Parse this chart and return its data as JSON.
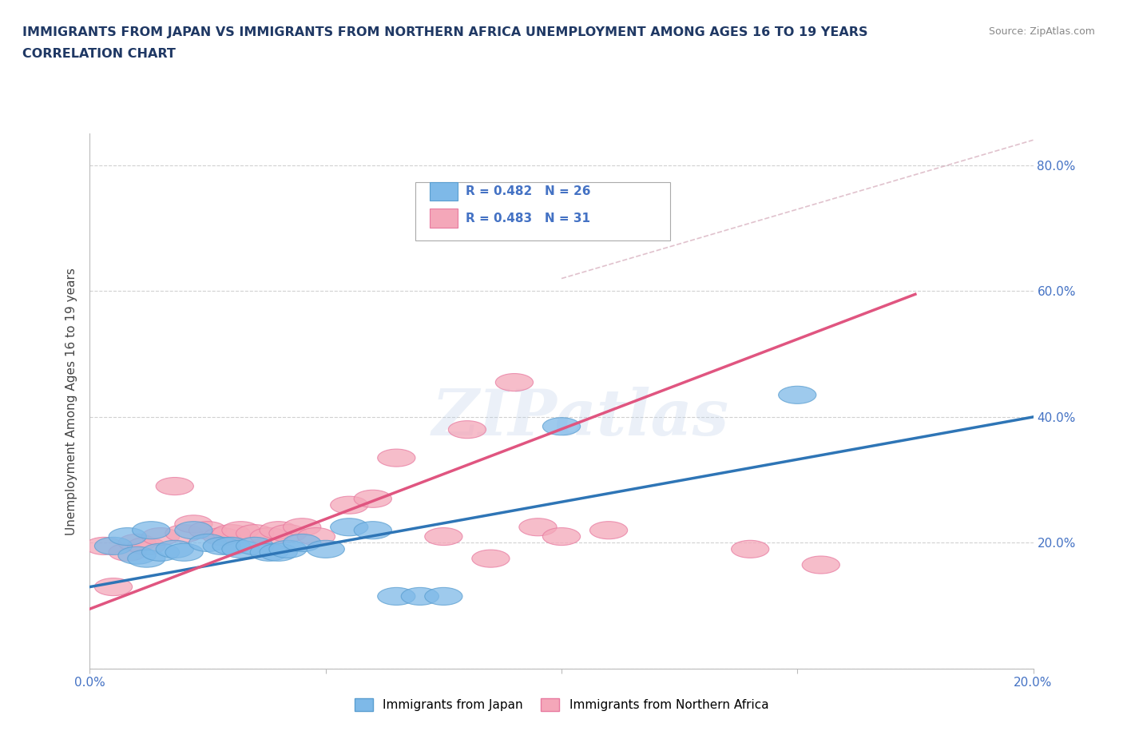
{
  "title_line1": "IMMIGRANTS FROM JAPAN VS IMMIGRANTS FROM NORTHERN AFRICA UNEMPLOYMENT AMONG AGES 16 TO 19 YEARS",
  "title_line2": "CORRELATION CHART",
  "source_text": "Source: ZipAtlas.com",
  "ylabel": "Unemployment Among Ages 16 to 19 years",
  "xlim": [
    0.0,
    0.2
  ],
  "ylim": [
    0.0,
    0.85
  ],
  "xticks": [
    0.0,
    0.05,
    0.1,
    0.15,
    0.2
  ],
  "xtick_labels": [
    "0.0%",
    "",
    "",
    "",
    "20.0%"
  ],
  "yticks_right": [
    0.2,
    0.4,
    0.6,
    0.8
  ],
  "ytick_labels_right": [
    "20.0%",
    "40.0%",
    "60.0%",
    "80.0%"
  ],
  "japan_color": "#7EB9E8",
  "africa_color": "#F4A7B9",
  "japan_edge_color": "#5A9ED0",
  "africa_edge_color": "#E87AA0",
  "japan_R": 0.482,
  "japan_N": 26,
  "africa_R": 0.483,
  "africa_N": 31,
  "watermark": "ZIPatlas",
  "japan_scatter_x": [
    0.005,
    0.008,
    0.01,
    0.012,
    0.013,
    0.015,
    0.018,
    0.02,
    0.022,
    0.025,
    0.028,
    0.03,
    0.032,
    0.035,
    0.038,
    0.04,
    0.042,
    0.045,
    0.05,
    0.055,
    0.06,
    0.065,
    0.07,
    0.075,
    0.1,
    0.15
  ],
  "japan_scatter_y": [
    0.195,
    0.21,
    0.18,
    0.175,
    0.22,
    0.185,
    0.19,
    0.185,
    0.22,
    0.2,
    0.195,
    0.195,
    0.19,
    0.195,
    0.185,
    0.185,
    0.19,
    0.2,
    0.19,
    0.225,
    0.22,
    0.115,
    0.115,
    0.115,
    0.385,
    0.435
  ],
  "africa_scatter_x": [
    0.003,
    0.005,
    0.008,
    0.01,
    0.012,
    0.015,
    0.018,
    0.02,
    0.022,
    0.025,
    0.028,
    0.03,
    0.032,
    0.035,
    0.038,
    0.04,
    0.042,
    0.045,
    0.048,
    0.055,
    0.06,
    0.065,
    0.075,
    0.08,
    0.085,
    0.09,
    0.095,
    0.1,
    0.11,
    0.14,
    0.155
  ],
  "africa_scatter_y": [
    0.195,
    0.13,
    0.185,
    0.2,
    0.195,
    0.21,
    0.29,
    0.215,
    0.23,
    0.22,
    0.21,
    0.215,
    0.22,
    0.215,
    0.21,
    0.22,
    0.215,
    0.225,
    0.21,
    0.26,
    0.27,
    0.335,
    0.21,
    0.38,
    0.175,
    0.455,
    0.225,
    0.21,
    0.22,
    0.19,
    0.165
  ],
  "japan_line_x": [
    0.0,
    0.2
  ],
  "japan_line_y": [
    0.13,
    0.4
  ],
  "africa_line_x": [
    0.0,
    0.175
  ],
  "africa_line_y": [
    0.095,
    0.595
  ],
  "diagonal_line_x": [
    0.1,
    0.2
  ],
  "diagonal_line_y": [
    0.62,
    0.84
  ],
  "axis_color": "#4472C4",
  "grid_color": "#CCCCCC",
  "title_color": "#1F3864",
  "source_color": "#888888"
}
